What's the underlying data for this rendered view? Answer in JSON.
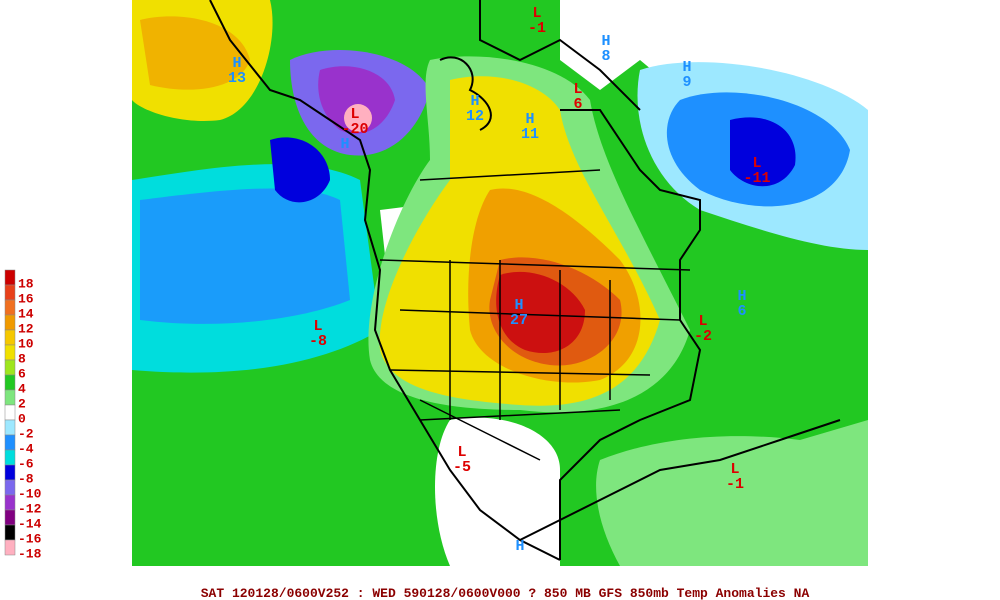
{
  "legend": {
    "labels": [
      18,
      16,
      14,
      12,
      10,
      8,
      6,
      4,
      2,
      0,
      -2,
      -4,
      -6,
      -8,
      -10,
      -12,
      -14,
      -16,
      -18
    ],
    "colors": [
      "#cc0000",
      "#e8401a",
      "#f07020",
      "#f09a00",
      "#f5c800",
      "#f0e000",
      "#9ee61e",
      "#22c822",
      "#7ee67e",
      "#ffffff",
      "#9de8ff",
      "#1e90ff",
      "#00dddd",
      "#0000dd",
      "#7b68ee",
      "#9932cc",
      "#800080",
      "#000000",
      "#ffb0c0"
    ]
  },
  "centers": [
    {
      "type": "H",
      "value": 13
    },
    {
      "type": "L",
      "value": -20
    },
    {
      "type": "H"
    },
    {
      "type": "L",
      "value": -1
    },
    {
      "type": "H",
      "value": 8
    },
    {
      "type": "H",
      "value": 9
    },
    {
      "type": "L",
      "value": 6
    },
    {
      "type": "H",
      "value": 12
    },
    {
      "type": "H",
      "value": 11
    },
    {
      "type": "L",
      "value": -11
    },
    {
      "type": "H",
      "value": 27
    },
    {
      "type": "L",
      "value": -8
    },
    {
      "type": "L",
      "value": -2
    },
    {
      "type": "H",
      "value": 6
    },
    {
      "type": "L",
      "value": -5
    },
    {
      "type": "L",
      "value": -1
    },
    {
      "type": "H"
    }
  ],
  "footer": "SAT 120128/0600V252 : WED 590128/0600V000  ? 850 MB GFS 850mb Temp Anomalies NA"
}
